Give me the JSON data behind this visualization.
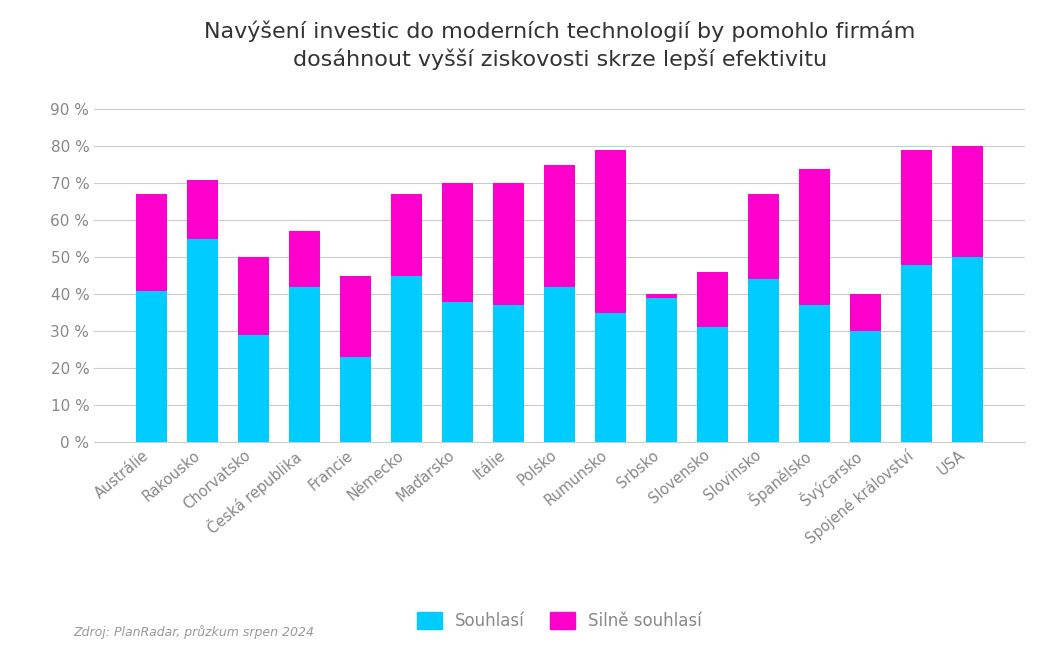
{
  "title": "Navýšení investic do moderních technologií by pomohlo firmám\ndosáhnout vyšší ziskovosti skrze lepší efektivitu",
  "categories": [
    "Austrálie",
    "Rakousko",
    "Chorvatsko",
    "Česká republika",
    "Francie",
    "Německo",
    "Maďarsko",
    "Itálie",
    "Polsko",
    "Rumunsko",
    "Srbsko",
    "Slovensko",
    "Slovinsko",
    "Španělsko",
    "Švýcarsko",
    "Spojené království",
    "USA"
  ],
  "souhlasi": [
    41,
    55,
    29,
    42,
    23,
    45,
    38,
    37,
    42,
    35,
    39,
    31,
    44,
    37,
    30,
    48,
    50
  ],
  "silne_souhlasi": [
    26,
    16,
    21,
    15,
    22,
    22,
    32,
    33,
    33,
    44,
    1,
    15,
    23,
    37,
    10,
    31,
    30
  ],
  "color_souhlasi": "#00CCFF",
  "color_silne": "#FF00CC",
  "ylabel_ticks": [
    "0 %",
    "10 %",
    "20 %",
    "30 %",
    "40 %",
    "50 %",
    "60 %",
    "70 %",
    "80 %",
    "90 %"
  ],
  "yticks": [
    0,
    10,
    20,
    30,
    40,
    50,
    60,
    70,
    80,
    90
  ],
  "ylim": [
    0,
    95
  ],
  "legend_souhlasi": "Souhlasí",
  "legend_silne": "Silně souhlasí",
  "source_text": "Zdroj: PlanRadar, průzkum srpen 2024",
  "background_color": "#ffffff",
  "grid_color": "#cccccc",
  "title_color": "#333333",
  "tick_color": "#888888",
  "bar_width": 0.6
}
